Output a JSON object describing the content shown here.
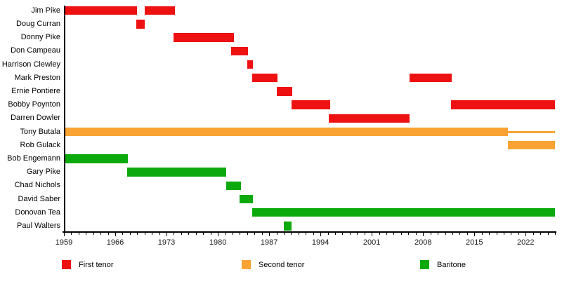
{
  "chart_data": {
    "type": "bar",
    "subtype": "gantt-member-timeline",
    "orientation": "horizontal",
    "grid": false,
    "legend_position": "bottom",
    "x_axis": {
      "min": 1959,
      "max": 2026,
      "minor_tick_every": 1,
      "major_ticks": [
        {
          "year": 1959,
          "label": "1959"
        },
        {
          "year": 1966,
          "label": "1966"
        },
        {
          "year": 1973,
          "label": "1973"
        },
        {
          "year": 1980,
          "label": "1980"
        },
        {
          "year": 1987,
          "label": "1987"
        },
        {
          "year": 1994,
          "label": "1994"
        },
        {
          "year": 2001,
          "label": "2001"
        },
        {
          "year": 2008,
          "label": "2008"
        },
        {
          "year": 2015,
          "label": "2015"
        },
        {
          "year": 2022,
          "label": "2022"
        }
      ]
    },
    "rows": [
      {
        "name": "Jim Pike",
        "role": "first_tenor",
        "segments": [
          {
            "start": 1959,
            "end": 1969
          },
          {
            "start": 1970,
            "end": 1974.1
          }
        ]
      },
      {
        "name": "Doug Curran",
        "role": "first_tenor",
        "segments": [
          {
            "start": 1968.9,
            "end": 1970
          }
        ]
      },
      {
        "name": "Donny Pike",
        "role": "first_tenor",
        "segments": [
          {
            "start": 1974,
            "end": 1982.2
          }
        ]
      },
      {
        "name": "Don Campeau",
        "role": "first_tenor",
        "segments": [
          {
            "start": 1981.8,
            "end": 1984.1
          }
        ]
      },
      {
        "name": "Harrison Clewley",
        "role": "first_tenor",
        "segments": [
          {
            "start": 1984,
            "end": 1984.8
          }
        ]
      },
      {
        "name": "Mark Preston",
        "role": "first_tenor",
        "segments": [
          {
            "start": 1984.7,
            "end": 1988.1
          },
          {
            "start": 2006.2,
            "end": 2011.9
          }
        ]
      },
      {
        "name": "Ernie Pontiere",
        "role": "first_tenor",
        "segments": [
          {
            "start": 1988,
            "end": 1990.2
          }
        ]
      },
      {
        "name": "Bobby Poynton",
        "role": "first_tenor",
        "segments": [
          {
            "start": 1990.1,
            "end": 1995.3
          },
          {
            "start": 2011.8,
            "end": 2026
          }
        ]
      },
      {
        "name": "Darren Dowler",
        "role": "first_tenor",
        "segments": [
          {
            "start": 1995.1,
            "end": 2006.2
          }
        ]
      },
      {
        "name": "Tony Butala",
        "role": "second_tenor",
        "segments": [
          {
            "start": 1959,
            "end": 2019.6
          },
          {
            "start": 2019.6,
            "end": 2026,
            "style": "line"
          }
        ]
      },
      {
        "name": "Rob Gulack",
        "role": "second_tenor",
        "segments": [
          {
            "start": 2019.6,
            "end": 2026
          }
        ]
      },
      {
        "name": "Bob Engemann",
        "role": "baritone",
        "segments": [
          {
            "start": 1959,
            "end": 1967.7
          }
        ]
      },
      {
        "name": "Gary Pike",
        "role": "baritone",
        "segments": [
          {
            "start": 1967.6,
            "end": 1981.1
          }
        ]
      },
      {
        "name": "Chad Nichols",
        "role": "baritone",
        "segments": [
          {
            "start": 1981.1,
            "end": 1983.2
          }
        ]
      },
      {
        "name": "David Saber",
        "role": "baritone",
        "segments": [
          {
            "start": 1983,
            "end": 1984.8
          }
        ]
      },
      {
        "name": "Donovan Tea",
        "role": "baritone",
        "segments": [
          {
            "start": 1984.7,
            "end": 2026
          }
        ]
      },
      {
        "name": "Paul Walters",
        "role": "baritone",
        "segments": [
          {
            "start": 1989,
            "end": 1990.1
          }
        ]
      }
    ],
    "legend": [
      {
        "label": "First tenor",
        "role": "first_tenor"
      },
      {
        "label": "Second tenor",
        "role": "second_tenor"
      },
      {
        "label": "Baritone",
        "role": "baritone"
      }
    ],
    "colors": {
      "first_tenor": "#ee1111",
      "second_tenor": "#faa333",
      "baritone": "#0ca90c",
      "axis": "#000000",
      "text": "#000000"
    }
  }
}
